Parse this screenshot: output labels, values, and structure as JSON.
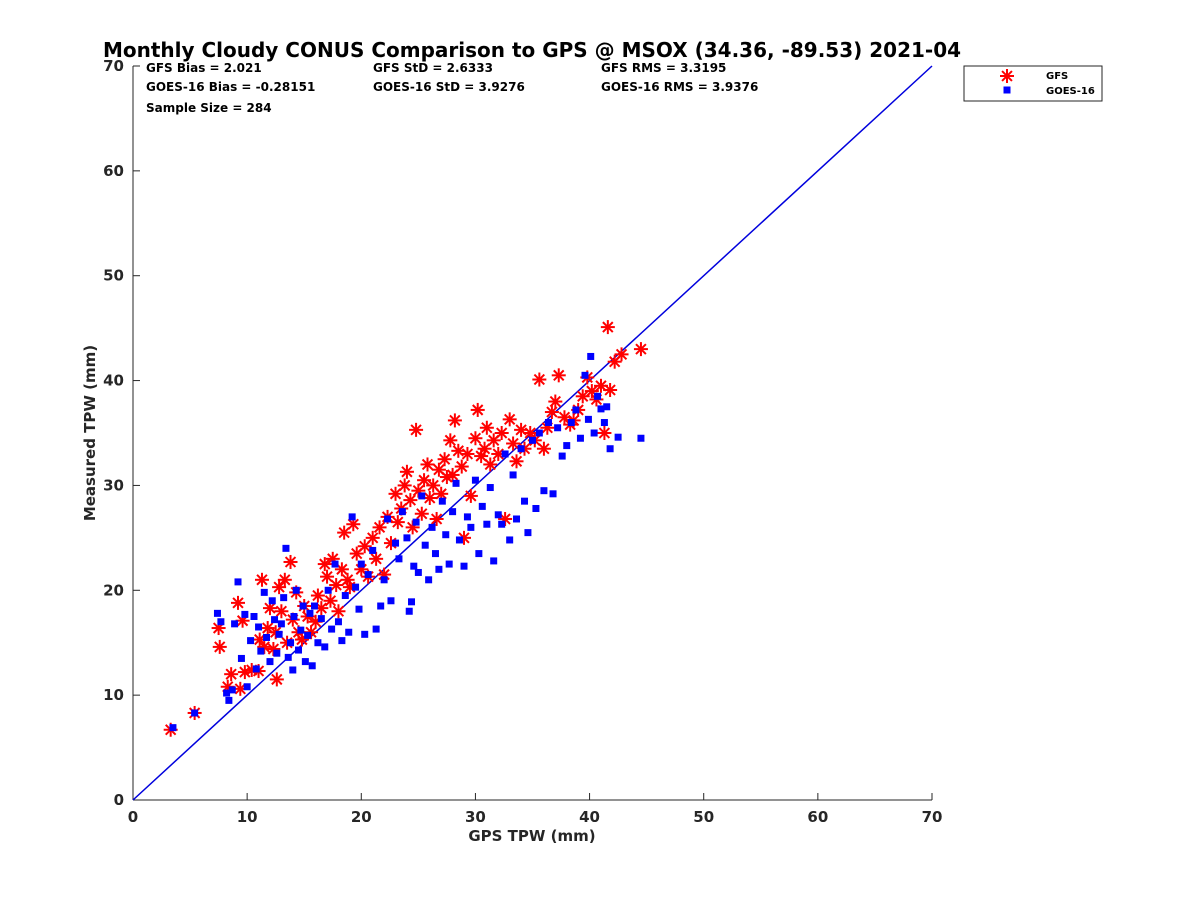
{
  "chart_data": {
    "type": "scatter",
    "title": "Monthly Cloudy CONUS Comparison to GPS @ MSOX (34.36, -89.53) 2021-04",
    "xlabel": "GPS TPW (mm)",
    "ylabel": "Measured TPW (mm)",
    "xlim": [
      0,
      70
    ],
    "ylim": [
      0,
      70
    ],
    "xticks": [
      "0",
      "10",
      "20",
      "30",
      "40",
      "50",
      "60",
      "70"
    ],
    "yticks": [
      "0",
      "10",
      "20",
      "30",
      "40",
      "50",
      "60",
      "70"
    ],
    "grid": false,
    "legend_position": "top-right, outside axes",
    "stats": [
      "GFS Bias = 2.021",
      "GFS StD = 2.6333",
      "GFS RMS = 3.3195",
      "GOES-16 Bias = -0.28151",
      "GOES-16 StD = 3.9276",
      "GOES-16 RMS = 3.9376",
      "Sample Size = 284"
    ],
    "reference_line": {
      "x": [
        0,
        70
      ],
      "y": [
        0,
        70
      ],
      "color": "#0000dd"
    },
    "series": [
      {
        "name": "GFS",
        "marker": "asterisk",
        "color": "#ff0000",
        "points": [
          [
            3.3,
            6.7
          ],
          [
            5.4,
            8.3
          ],
          [
            7.5,
            16.4
          ],
          [
            7.6,
            14.6
          ],
          [
            8.3,
            10.8
          ],
          [
            8.6,
            12.0
          ],
          [
            9.2,
            18.8
          ],
          [
            9.4,
            10.6
          ],
          [
            9.6,
            17.1
          ],
          [
            9.8,
            12.2
          ],
          [
            10.4,
            12.4
          ],
          [
            11.0,
            12.3
          ],
          [
            11.1,
            15.3
          ],
          [
            11.3,
            21.0
          ],
          [
            11.5,
            14.6
          ],
          [
            11.8,
            16.4
          ],
          [
            12.0,
            18.3
          ],
          [
            12.3,
            14.4
          ],
          [
            12.5,
            16.0
          ],
          [
            12.6,
            11.5
          ],
          [
            12.8,
            20.3
          ],
          [
            13.0,
            18.0
          ],
          [
            13.3,
            21.0
          ],
          [
            13.5,
            15.0
          ],
          [
            13.8,
            22.7
          ],
          [
            14.0,
            17.2
          ],
          [
            14.3,
            19.8
          ],
          [
            14.5,
            16.0
          ],
          [
            14.8,
            15.3
          ],
          [
            15.0,
            18.5
          ],
          [
            15.3,
            17.5
          ],
          [
            15.6,
            16.0
          ],
          [
            16.0,
            17.0
          ],
          [
            16.2,
            19.5
          ],
          [
            16.5,
            18.3
          ],
          [
            16.8,
            22.5
          ],
          [
            17.0,
            21.3
          ],
          [
            17.3,
            19.0
          ],
          [
            17.5,
            23.0
          ],
          [
            17.8,
            20.5
          ],
          [
            18.0,
            18.0
          ],
          [
            18.3,
            22.0
          ],
          [
            18.5,
            25.5
          ],
          [
            18.8,
            21.0
          ],
          [
            19.0,
            20.3
          ],
          [
            19.3,
            26.3
          ],
          [
            19.6,
            23.5
          ],
          [
            20.0,
            22.0
          ],
          [
            20.3,
            24.2
          ],
          [
            20.6,
            21.3
          ],
          [
            21.0,
            25.0
          ],
          [
            21.3,
            23.0
          ],
          [
            21.6,
            26.0
          ],
          [
            22.0,
            21.5
          ],
          [
            22.3,
            27.0
          ],
          [
            22.6,
            24.5
          ],
          [
            23.0,
            29.2
          ],
          [
            23.2,
            26.5
          ],
          [
            23.5,
            27.8
          ],
          [
            23.8,
            30.0
          ],
          [
            24.0,
            31.3
          ],
          [
            24.3,
            28.6
          ],
          [
            24.5,
            26.0
          ],
          [
            24.8,
            35.3
          ],
          [
            25.0,
            29.5
          ],
          [
            25.3,
            27.3
          ],
          [
            25.5,
            30.5
          ],
          [
            25.8,
            32.0
          ],
          [
            26.0,
            28.8
          ],
          [
            26.3,
            30.0
          ],
          [
            26.6,
            26.8
          ],
          [
            26.8,
            31.5
          ],
          [
            27.0,
            29.2
          ],
          [
            27.3,
            32.5
          ],
          [
            27.5,
            30.8
          ],
          [
            27.8,
            34.3
          ],
          [
            28.0,
            31.0
          ],
          [
            28.2,
            36.2
          ],
          [
            28.5,
            33.3
          ],
          [
            28.8,
            31.8
          ],
          [
            29.0,
            25.0
          ],
          [
            29.3,
            33.0
          ],
          [
            29.6,
            29.0
          ],
          [
            30.0,
            34.5
          ],
          [
            30.2,
            37.2
          ],
          [
            30.5,
            32.8
          ],
          [
            30.8,
            33.5
          ],
          [
            31.0,
            35.5
          ],
          [
            31.3,
            32.0
          ],
          [
            31.6,
            34.3
          ],
          [
            32.0,
            33.0
          ],
          [
            32.3,
            35.0
          ],
          [
            32.6,
            26.8
          ],
          [
            33.0,
            36.3
          ],
          [
            33.3,
            34.0
          ],
          [
            33.6,
            32.3
          ],
          [
            34.0,
            35.3
          ],
          [
            34.3,
            33.5
          ],
          [
            34.8,
            35.0
          ],
          [
            35.2,
            34.3
          ],
          [
            35.6,
            40.1
          ],
          [
            36.0,
            33.5
          ],
          [
            36.3,
            35.5
          ],
          [
            36.7,
            37.0
          ],
          [
            37.0,
            38.0
          ],
          [
            37.3,
            40.5
          ],
          [
            37.8,
            36.5
          ],
          [
            38.3,
            35.8
          ],
          [
            38.6,
            36.2
          ],
          [
            39.0,
            37.2
          ],
          [
            39.4,
            38.5
          ],
          [
            39.8,
            40.3
          ],
          [
            40.2,
            39.0
          ],
          [
            40.6,
            38.2
          ],
          [
            41.0,
            39.5
          ],
          [
            41.3,
            35.0
          ],
          [
            41.6,
            45.1
          ],
          [
            41.8,
            39.1
          ],
          [
            42.2,
            41.8
          ],
          [
            42.8,
            42.5
          ],
          [
            44.5,
            43.0
          ]
        ]
      },
      {
        "name": "GOES-16",
        "marker": "square",
        "color": "#0000ff",
        "points": [
          [
            3.5,
            6.9
          ],
          [
            5.4,
            8.3
          ],
          [
            7.4,
            17.8
          ],
          [
            7.7,
            17.0
          ],
          [
            8.2,
            10.2
          ],
          [
            8.4,
            9.5
          ],
          [
            8.7,
            10.5
          ],
          [
            8.9,
            16.8
          ],
          [
            9.2,
            20.8
          ],
          [
            9.5,
            13.5
          ],
          [
            9.8,
            17.7
          ],
          [
            10.0,
            10.8
          ],
          [
            10.3,
            15.2
          ],
          [
            10.6,
            17.5
          ],
          [
            10.8,
            12.5
          ],
          [
            11.0,
            16.5
          ],
          [
            11.2,
            14.2
          ],
          [
            11.5,
            19.8
          ],
          [
            11.7,
            15.5
          ],
          [
            12.0,
            13.2
          ],
          [
            12.2,
            19.0
          ],
          [
            12.4,
            17.2
          ],
          [
            12.6,
            14.0
          ],
          [
            12.8,
            15.8
          ],
          [
            13.0,
            16.8
          ],
          [
            13.2,
            19.3
          ],
          [
            13.4,
            24.0
          ],
          [
            13.6,
            13.6
          ],
          [
            13.8,
            15.0
          ],
          [
            14.0,
            12.4
          ],
          [
            14.1,
            17.5
          ],
          [
            14.3,
            20.0
          ],
          [
            14.5,
            14.3
          ],
          [
            14.7,
            16.2
          ],
          [
            14.9,
            18.5
          ],
          [
            15.1,
            13.2
          ],
          [
            15.3,
            15.7
          ],
          [
            15.5,
            17.8
          ],
          [
            15.7,
            12.8
          ],
          [
            15.9,
            18.5
          ],
          [
            16.2,
            15.0
          ],
          [
            16.5,
            17.3
          ],
          [
            16.8,
            14.6
          ],
          [
            17.1,
            20.0
          ],
          [
            17.4,
            16.3
          ],
          [
            17.7,
            22.5
          ],
          [
            18.0,
            17.0
          ],
          [
            18.3,
            15.2
          ],
          [
            18.6,
            19.5
          ],
          [
            18.9,
            16.0
          ],
          [
            19.2,
            27.0
          ],
          [
            19.5,
            20.3
          ],
          [
            19.8,
            18.2
          ],
          [
            20.0,
            22.5
          ],
          [
            20.3,
            15.8
          ],
          [
            20.6,
            21.5
          ],
          [
            21.0,
            23.8
          ],
          [
            21.3,
            16.3
          ],
          [
            21.7,
            18.5
          ],
          [
            22.0,
            21.0
          ],
          [
            22.3,
            26.8
          ],
          [
            22.6,
            19.0
          ],
          [
            23.0,
            24.5
          ],
          [
            23.3,
            23.0
          ],
          [
            23.6,
            27.5
          ],
          [
            24.0,
            25.0
          ],
          [
            24.2,
            18.0
          ],
          [
            24.4,
            18.9
          ],
          [
            24.6,
            22.3
          ],
          [
            24.8,
            26.5
          ],
          [
            25.0,
            21.7
          ],
          [
            25.3,
            29.0
          ],
          [
            25.6,
            24.3
          ],
          [
            25.9,
            21.0
          ],
          [
            26.2,
            26.0
          ],
          [
            26.5,
            23.5
          ],
          [
            26.8,
            22.0
          ],
          [
            27.1,
            28.5
          ],
          [
            27.4,
            25.3
          ],
          [
            27.7,
            22.5
          ],
          [
            28.0,
            27.5
          ],
          [
            28.3,
            30.2
          ],
          [
            28.6,
            24.8
          ],
          [
            29.0,
            22.3
          ],
          [
            29.3,
            27.0
          ],
          [
            29.6,
            26.0
          ],
          [
            30.0,
            30.5
          ],
          [
            30.3,
            23.5
          ],
          [
            30.6,
            28.0
          ],
          [
            31.0,
            26.3
          ],
          [
            31.3,
            29.8
          ],
          [
            31.6,
            22.8
          ],
          [
            32.0,
            27.2
          ],
          [
            32.3,
            26.3
          ],
          [
            32.6,
            33.0
          ],
          [
            33.0,
            24.8
          ],
          [
            33.3,
            31.0
          ],
          [
            33.6,
            26.8
          ],
          [
            34.0,
            33.5
          ],
          [
            34.3,
            28.5
          ],
          [
            34.6,
            25.5
          ],
          [
            35.0,
            34.3
          ],
          [
            35.3,
            27.8
          ],
          [
            35.6,
            35.0
          ],
          [
            36.0,
            29.5
          ],
          [
            36.4,
            36.0
          ],
          [
            36.8,
            29.2
          ],
          [
            37.2,
            35.5
          ],
          [
            37.6,
            32.8
          ],
          [
            38.0,
            33.8
          ],
          [
            38.4,
            36.0
          ],
          [
            38.8,
            37.2
          ],
          [
            39.2,
            34.5
          ],
          [
            39.6,
            40.5
          ],
          [
            39.9,
            36.3
          ],
          [
            40.1,
            42.3
          ],
          [
            40.4,
            35.0
          ],
          [
            40.7,
            38.5
          ],
          [
            41.0,
            37.3
          ],
          [
            41.3,
            36.0
          ],
          [
            41.5,
            37.5
          ],
          [
            41.8,
            33.5
          ],
          [
            42.5,
            34.6
          ],
          [
            44.5,
            34.5
          ]
        ]
      }
    ]
  }
}
